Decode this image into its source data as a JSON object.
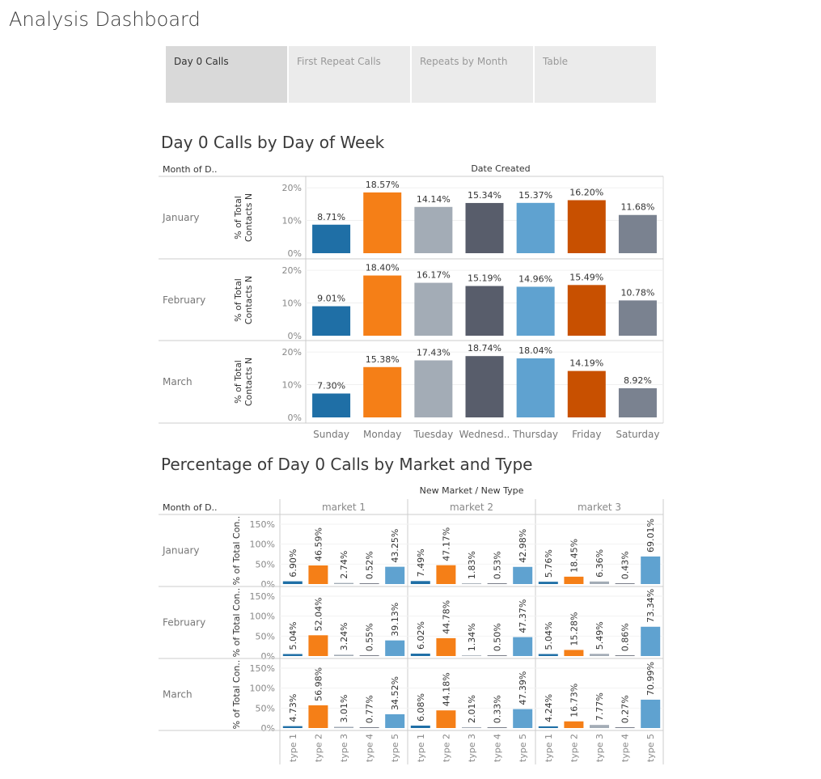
{
  "app": {
    "title": "Analysis Dashboard"
  },
  "tabs": [
    {
      "label": "Day 0 Calls",
      "active": true
    },
    {
      "label": "First Repeat Calls",
      "active": false
    },
    {
      "label": "Repeats by Month",
      "active": false
    },
    {
      "label": "Table",
      "active": false
    }
  ],
  "colors": [
    "#1f6fa6",
    "#f57f17",
    "#a3acb6",
    "#585d6b",
    "#5fa2d0",
    "#c85000",
    "#7a8290"
  ],
  "chart_data": [
    {
      "type": "bar",
      "title": "Day 0 Calls by Day of Week",
      "row_header": "Month of D..",
      "column_header": "Date Created",
      "ylabel": "% of Total Contacts N",
      "yticks": [
        "0%",
        "10%",
        "20%"
      ],
      "ylim": [
        0,
        22
      ],
      "categories": [
        "Sunday",
        "Monday",
        "Tuesday",
        "Wednesd..",
        "Thursday",
        "Friday",
        "Saturday"
      ],
      "series": [
        {
          "name": "January",
          "values": [
            8.71,
            18.57,
            14.14,
            15.34,
            15.37,
            16.2,
            11.68
          ],
          "labels": [
            "8.71%",
            "18.57%",
            "14.14%",
            "15.34%",
            "15.37%",
            "16.20%",
            "11.68%"
          ]
        },
        {
          "name": "February",
          "values": [
            9.01,
            18.4,
            16.17,
            15.19,
            14.96,
            15.49,
            10.78
          ],
          "labels": [
            "9.01%",
            "18.40%",
            "16.17%",
            "15.19%",
            "14.96%",
            "15.49%",
            "10.78%"
          ]
        },
        {
          "name": "March",
          "values": [
            7.3,
            15.38,
            17.43,
            18.74,
            18.04,
            14.19,
            8.92
          ],
          "labels": [
            "7.30%",
            "15.38%",
            "17.43%",
            "18.74%",
            "18.04%",
            "14.19%",
            "8.92%"
          ]
        }
      ]
    },
    {
      "type": "bar",
      "title": "Percentage of Day 0 Calls by Market and Type",
      "row_header": "Month of D..",
      "column_header": "New Market  /  New Type",
      "ylabel": "% of Total Con..",
      "yticks": [
        "0%",
        "50%",
        "100%",
        "150%"
      ],
      "ylim": [
        0,
        160
      ],
      "markets": [
        "market 1",
        "market 2",
        "market 3"
      ],
      "categories": [
        "type 1",
        "type 2",
        "type 3",
        "type 4",
        "type 5"
      ],
      "rows": [
        {
          "name": "January",
          "markets": [
            {
              "values": [
                6.9,
                46.59,
                2.74,
                0.52,
                43.25
              ],
              "labels": [
                "6.90%",
                "46.59%",
                "2.74%",
                "0.52%",
                "43.25%"
              ]
            },
            {
              "values": [
                7.49,
                47.17,
                1.83,
                0.53,
                42.98
              ],
              "labels": [
                "7.49%",
                "47.17%",
                "1.83%",
                "0.53%",
                "42.98%"
              ]
            },
            {
              "values": [
                5.76,
                18.45,
                6.36,
                0.43,
                69.01
              ],
              "labels": [
                "5.76%",
                "18.45%",
                "6.36%",
                "0.43%",
                "69.01%"
              ]
            }
          ]
        },
        {
          "name": "February",
          "markets": [
            {
              "values": [
                5.04,
                52.04,
                3.24,
                0.55,
                39.13
              ],
              "labels": [
                "5.04%",
                "52.04%",
                "3.24%",
                "0.55%",
                "39.13%"
              ]
            },
            {
              "values": [
                6.02,
                44.78,
                1.34,
                0.5,
                47.37
              ],
              "labels": [
                "6.02%",
                "44.78%",
                "1.34%",
                "0.50%",
                "47.37%"
              ]
            },
            {
              "values": [
                5.04,
                15.28,
                5.49,
                0.86,
                73.34
              ],
              "labels": [
                "5.04%",
                "15.28%",
                "5.49%",
                "0.86%",
                "73.34%"
              ]
            }
          ]
        },
        {
          "name": "March",
          "markets": [
            {
              "values": [
                4.73,
                56.98,
                3.01,
                0.77,
                34.52
              ],
              "labels": [
                "4.73%",
                "56.98%",
                "3.01%",
                "0.77%",
                "34.52%"
              ]
            },
            {
              "values": [
                6.08,
                44.18,
                2.01,
                0.33,
                47.39
              ],
              "labels": [
                "6.08%",
                "44.18%",
                "2.01%",
                "0.33%",
                "47.39%"
              ]
            },
            {
              "values": [
                4.24,
                16.73,
                7.77,
                0.27,
                70.99
              ],
              "labels": [
                "4.24%",
                "16.73%",
                "7.77%",
                "0.27%",
                "70.99%"
              ]
            }
          ]
        }
      ]
    }
  ]
}
